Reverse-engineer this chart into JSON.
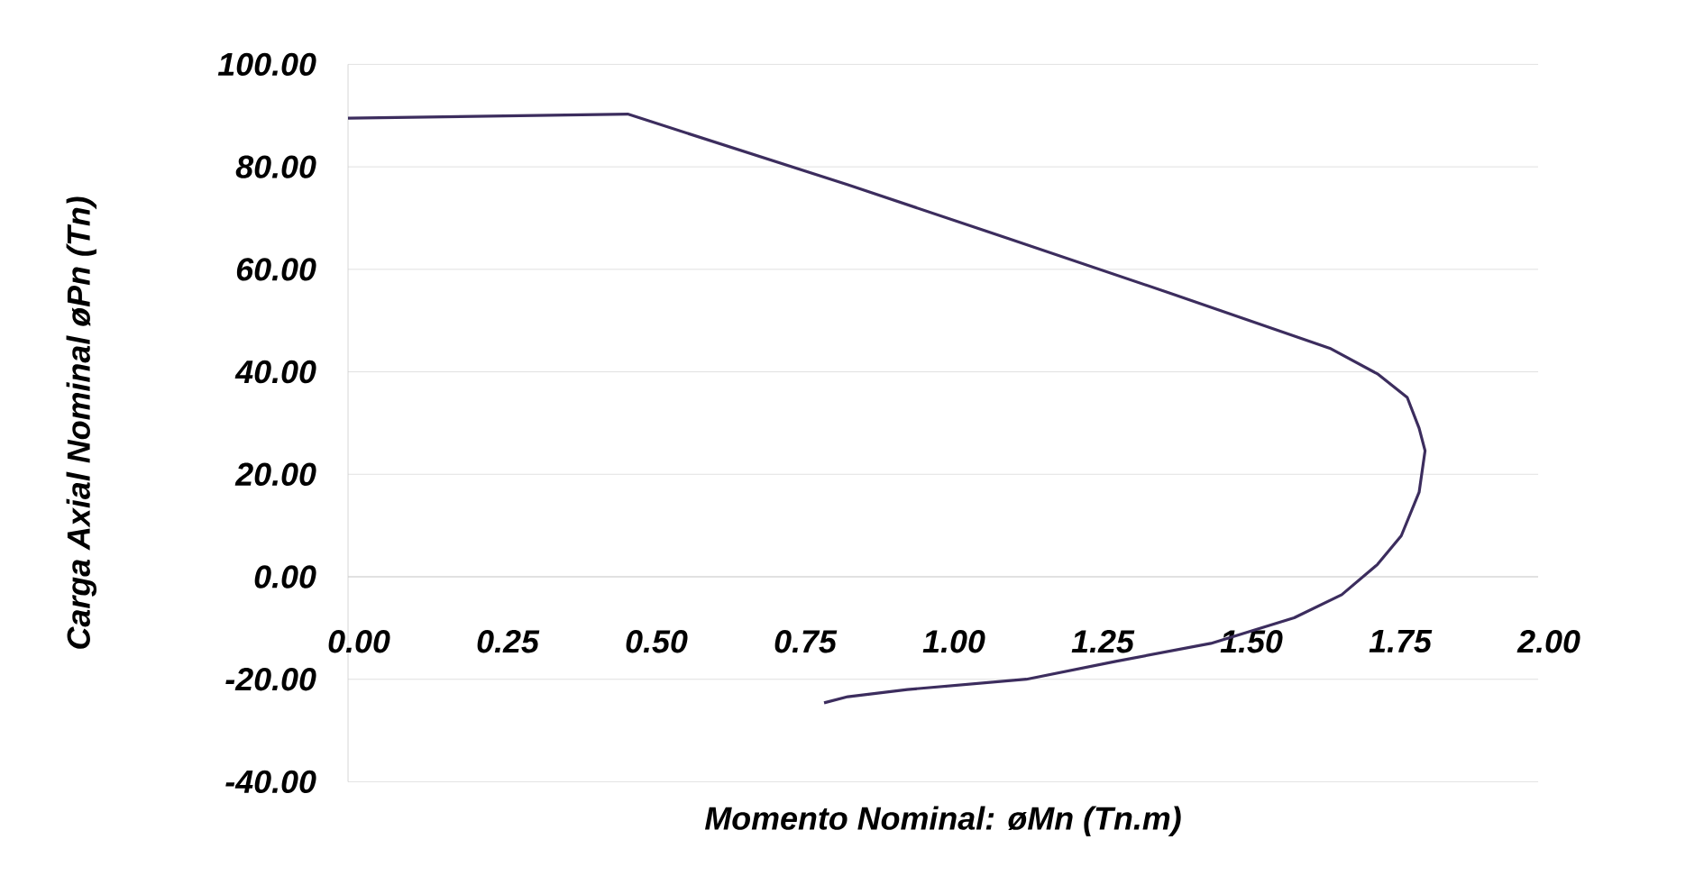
{
  "chart_data": {
    "type": "line",
    "xlabel": "Momento Nominal: øMn (Tn.m)",
    "ylabel": "Carga Axial Nominal øPn (Tn)",
    "xlim": [
      0,
      2
    ],
    "xticks": [
      {
        "value": 0,
        "label": "0.00"
      },
      {
        "value": 0.25,
        "label": "0.25"
      },
      {
        "value": 0.5,
        "label": "0.50"
      },
      {
        "value": 0.75,
        "label": "0.75"
      },
      {
        "value": 1,
        "label": "1.00"
      },
      {
        "value": 1.25,
        "label": "1.25"
      },
      {
        "value": 1.5,
        "label": "1.50"
      },
      {
        "value": 1.75,
        "label": "1.75"
      },
      {
        "value": 2,
        "label": "2.00"
      }
    ],
    "ylim": [
      -40,
      100
    ],
    "yticks": [
      {
        "value": -40,
        "label": "-40.00"
      },
      {
        "value": -20,
        "label": "-20.00"
      },
      {
        "value": 0,
        "label": "0.00"
      },
      {
        "value": 20,
        "label": "20.00"
      },
      {
        "value": 40,
        "label": "40.00"
      },
      {
        "value": 60,
        "label": "60.00"
      },
      {
        "value": 80,
        "label": "80.00"
      },
      {
        "value": 100,
        "label": "100.00"
      }
    ],
    "grid": "y",
    "marker": "none",
    "line_style": "solid",
    "series": [
      {
        "color": "#3c2d5e",
        "x": [
          0,
          0.47,
          0.84,
          1.11,
          1.38,
          1.65,
          1.73,
          1.78,
          1.8,
          1.81,
          1.8,
          1.77,
          1.73,
          1.67,
          1.59,
          1.45,
          1.29,
          1.14,
          0.94,
          0.84,
          0.8
        ],
        "values": [
          89.5,
          90.3,
          76.5,
          66,
          55.4,
          44.6,
          39.6,
          35,
          29,
          24.6,
          16.5,
          8,
          2.4,
          -3.5,
          -8,
          -13,
          -16.5,
          -20,
          -22,
          -23.4,
          -24.6
        ]
      }
    ]
  }
}
